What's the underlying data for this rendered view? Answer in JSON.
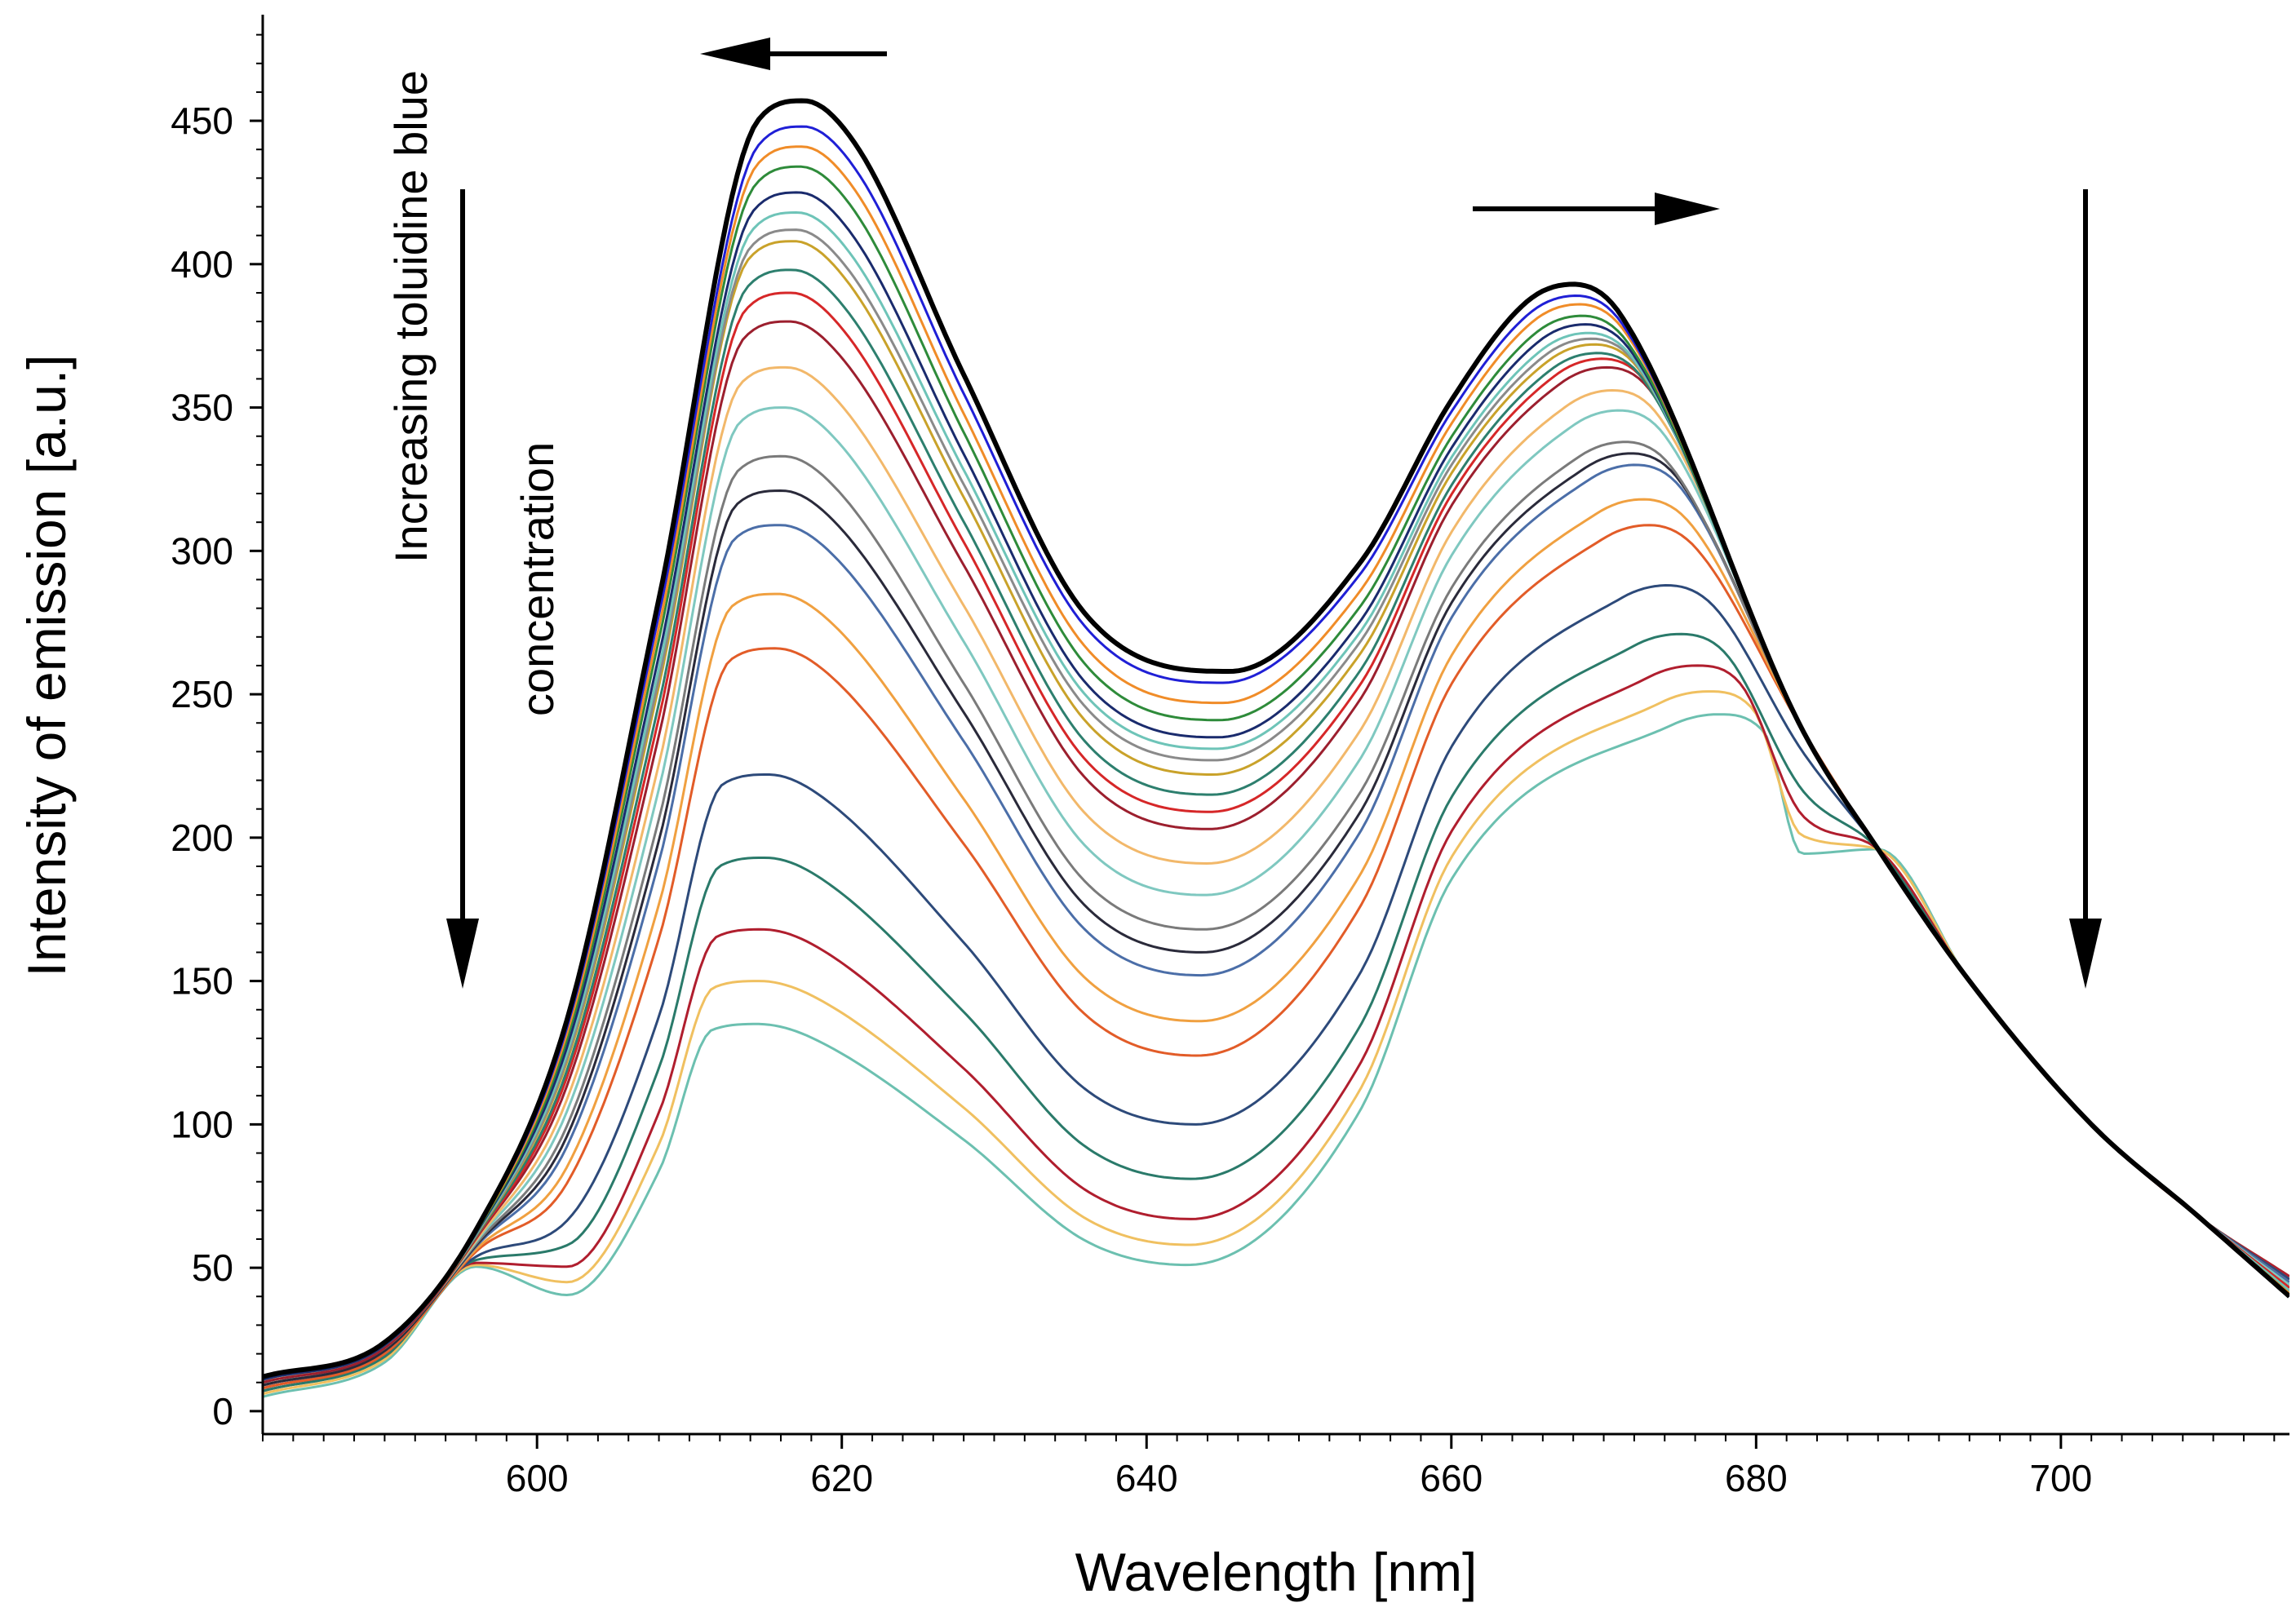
{
  "chart_data": {
    "type": "line",
    "title": "",
    "xlabel": "Wavelength [nm]",
    "ylabel": "Intensity of emission [a.u.]",
    "xlim": [
      582,
      715
    ],
    "ylim": [
      -8,
      487
    ],
    "x_ticks": [
      600,
      620,
      640,
      660,
      680,
      700
    ],
    "y_ticks": [
      0,
      50,
      100,
      150,
      200,
      250,
      300,
      350,
      400,
      450
    ],
    "grid": false,
    "annotations": {
      "line1": "Increasing toluidine blue",
      "line2": "concentration"
    },
    "series": [
      {
        "name": "s1",
        "color": "#000000",
        "width": 6,
        "peak1": [
          617.5,
          457
        ],
        "valley": [
          645.5,
          258
        ],
        "peak2": [
          668.0,
          393
        ],
        "start": 12,
        "end": 40
      },
      {
        "name": "s2",
        "color": "#1f1fd6",
        "width": 3,
        "peak1": [
          617.5,
          448
        ],
        "valley": [
          645.0,
          254
        ],
        "peak2": [
          668.2,
          389
        ],
        "start": 12,
        "end": 40
      },
      {
        "name": "s3",
        "color": "#f08c28",
        "width": 3,
        "peak1": [
          617.4,
          441
        ],
        "valley": [
          645.0,
          247
        ],
        "peak2": [
          668.4,
          386
        ],
        "start": 12,
        "end": 41
      },
      {
        "name": "s4",
        "color": "#2e8b3a",
        "width": 3,
        "peak1": [
          617.3,
          434
        ],
        "valley": [
          644.8,
          241
        ],
        "peak2": [
          668.6,
          382
        ],
        "start": 12,
        "end": 41
      },
      {
        "name": "s5",
        "color": "#1a2b6d",
        "width": 3,
        "peak1": [
          617.2,
          425
        ],
        "valley": [
          644.7,
          235
        ],
        "peak2": [
          668.8,
          379
        ],
        "start": 11,
        "end": 41
      },
      {
        "name": "s6",
        "color": "#6ec4b8",
        "width": 3,
        "peak1": [
          617.1,
          418
        ],
        "valley": [
          644.6,
          231
        ],
        "peak2": [
          669.0,
          376
        ],
        "start": 11,
        "end": 42
      },
      {
        "name": "s7",
        "color": "#8a8a8a",
        "width": 3,
        "peak1": [
          617.0,
          412
        ],
        "valley": [
          644.5,
          227
        ],
        "peak2": [
          669.2,
          374
        ],
        "start": 11,
        "end": 42
      },
      {
        "name": "s8",
        "color": "#c9a22a",
        "width": 3,
        "peak1": [
          616.9,
          408
        ],
        "valley": [
          644.4,
          222
        ],
        "peak2": [
          669.4,
          372
        ],
        "start": 11,
        "end": 42
      },
      {
        "name": "s9",
        "color": "#2d7f6e",
        "width": 3,
        "peak1": [
          616.8,
          398
        ],
        "valley": [
          644.3,
          215
        ],
        "peak2": [
          669.6,
          369
        ],
        "start": 11,
        "end": 42
      },
      {
        "name": "s10",
        "color": "#d62728",
        "width": 3,
        "peak1": [
          616.7,
          390
        ],
        "valley": [
          644.2,
          209
        ],
        "peak2": [
          669.9,
          367
        ],
        "start": 11,
        "end": 43
      },
      {
        "name": "s11",
        "color": "#9c1f2e",
        "width": 3,
        "peak1": [
          616.6,
          380
        ],
        "valley": [
          644.1,
          203
        ],
        "peak2": [
          670.2,
          364
        ],
        "start": 10,
        "end": 43
      },
      {
        "name": "s12",
        "color": "#f2b86a",
        "width": 3,
        "peak1": [
          616.4,
          364
        ],
        "valley": [
          644.0,
          191
        ],
        "peak2": [
          670.6,
          356
        ],
        "start": 10,
        "end": 43
      },
      {
        "name": "s13",
        "color": "#7fc8c0",
        "width": 3,
        "peak1": [
          616.3,
          350
        ],
        "valley": [
          643.9,
          180
        ],
        "peak2": [
          671.0,
          349
        ],
        "start": 10,
        "end": 44
      },
      {
        "name": "s14",
        "color": "#7a7a7a",
        "width": 3,
        "peak1": [
          616.2,
          333
        ],
        "valley": [
          643.8,
          168
        ],
        "peak2": [
          671.4,
          338
        ],
        "start": 10,
        "end": 44
      },
      {
        "name": "s15",
        "color": "#2a2a3a",
        "width": 3,
        "peak1": [
          616.1,
          321
        ],
        "valley": [
          643.7,
          160
        ],
        "peak2": [
          671.8,
          334
        ],
        "start": 9,
        "end": 44
      },
      {
        "name": "s16",
        "color": "#4b6ea8",
        "width": 3,
        "peak1": [
          616.0,
          309
        ],
        "valley": [
          643.6,
          152
        ],
        "peak2": [
          672.1,
          330
        ],
        "start": 9,
        "end": 45
      },
      {
        "name": "s17",
        "color": "#f0a040",
        "width": 3,
        "peak1": [
          615.8,
          285
        ],
        "valley": [
          643.5,
          136
        ],
        "peak2": [
          672.6,
          318
        ],
        "start": 9,
        "end": 45
      },
      {
        "name": "s18",
        "color": "#e25c28",
        "width": 3,
        "peak1": [
          615.7,
          266
        ],
        "valley": [
          643.4,
          124
        ],
        "peak2": [
          673.0,
          309
        ],
        "start": 8,
        "end": 45
      },
      {
        "name": "s19",
        "color": "#2d4a7a",
        "width": 3,
        "peak1": [
          615.2,
          222
        ],
        "valley": [
          643.2,
          100
        ],
        "peak2": [
          674.2,
          288
        ],
        "start": 8,
        "end": 46
      },
      {
        "name": "s20",
        "color": "#2a7a6a",
        "width": 3,
        "peak1": [
          615.0,
          193
        ],
        "valley": [
          643.0,
          81
        ],
        "peak2": [
          675.0,
          271
        ],
        "start": 7,
        "end": 46
      },
      {
        "name": "s21",
        "color": "#b01e2e",
        "width": 3,
        "peak1": [
          614.8,
          168
        ],
        "valley": [
          642.9,
          67
        ],
        "peak2": [
          676.0,
          260
        ],
        "start": 7,
        "end": 47
      },
      {
        "name": "s22",
        "color": "#f0c060",
        "width": 3,
        "peak1": [
          614.6,
          150
        ],
        "valley": [
          642.8,
          58
        ],
        "peak2": [
          676.8,
          251
        ],
        "start": 6,
        "end": 47
      },
      {
        "name": "s23",
        "color": "#6cc0b0",
        "width": 3,
        "peak1": [
          614.5,
          135
        ],
        "valley": [
          642.7,
          51
        ],
        "peak2": [
          677.5,
          243
        ],
        "start": 5,
        "end": 47
      }
    ]
  }
}
